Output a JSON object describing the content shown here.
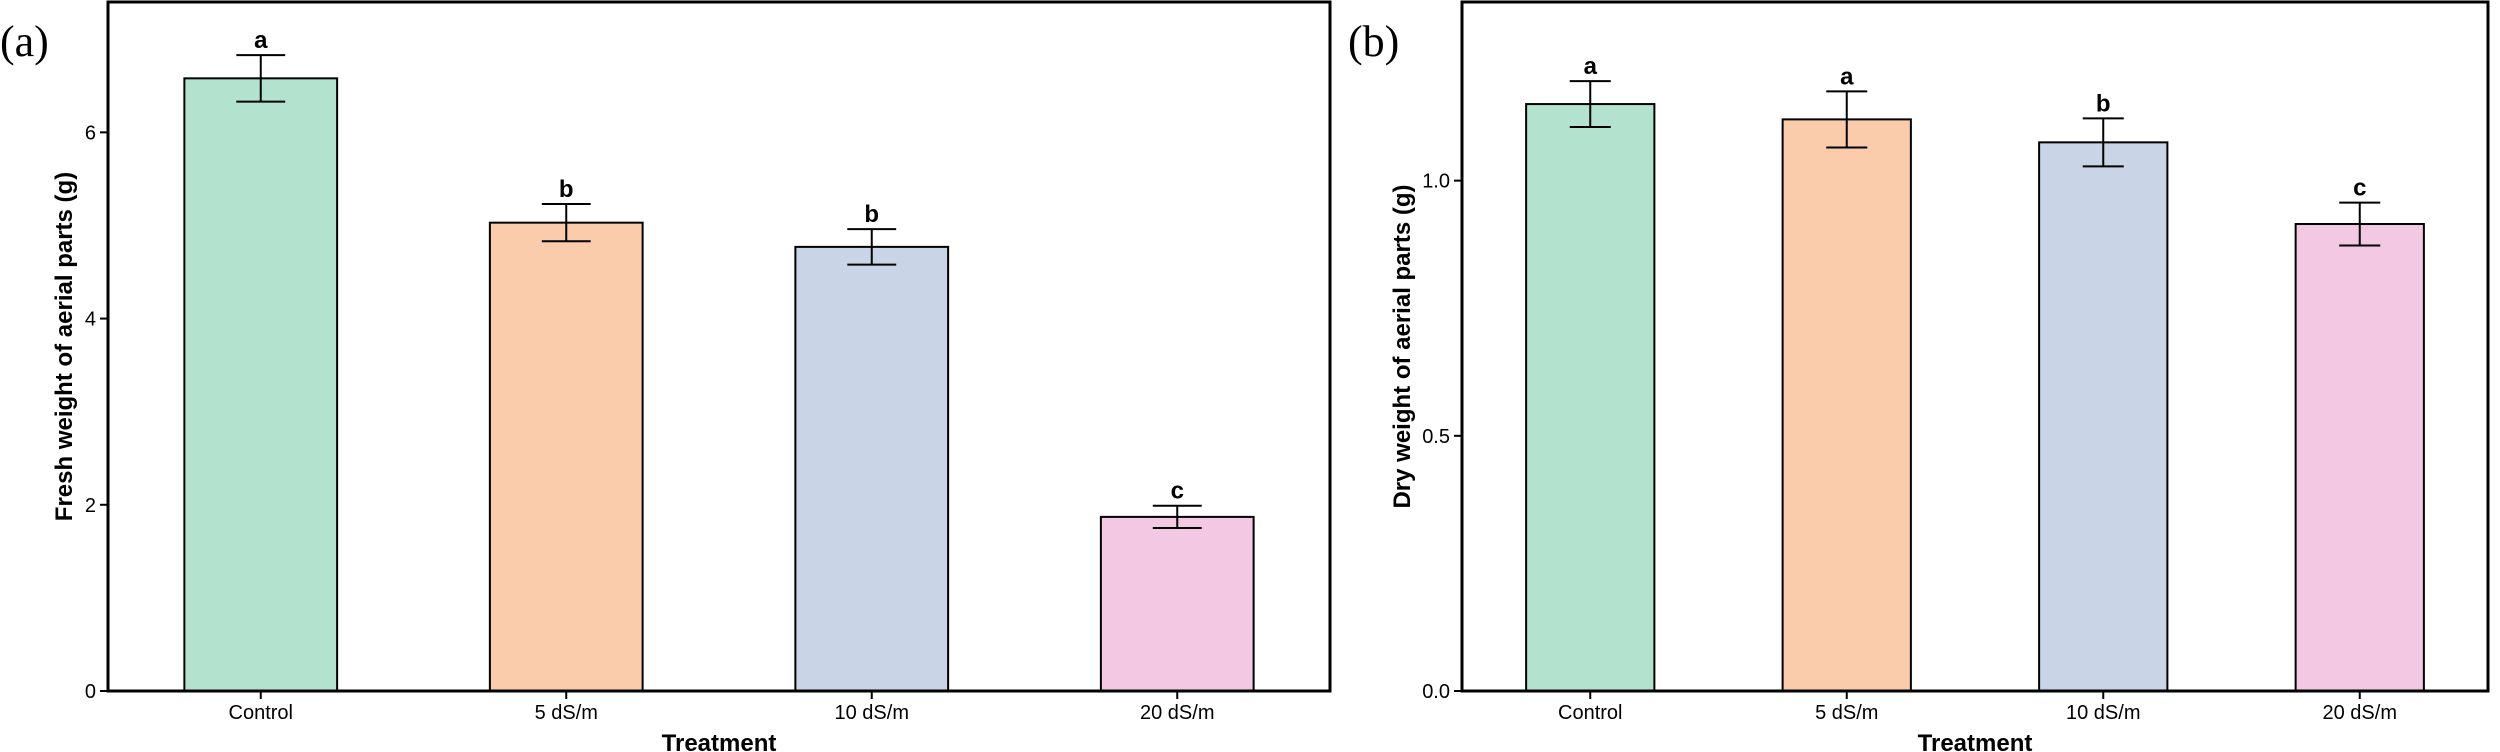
{
  "chart_data": [
    {
      "panel_label": "(a)",
      "type": "bar",
      "categories": [
        "Control",
        "5 dS/m",
        "10 dS/m",
        "20 dS/m"
      ],
      "values": [
        6.58,
        5.03,
        4.77,
        1.87
      ],
      "errors": [
        0.25,
        0.2,
        0.19,
        0.12
      ],
      "significance": [
        "a",
        "b",
        "b",
        "c"
      ],
      "colors": [
        "#b3e3cf",
        "#fbccab",
        "#c9d4e6",
        "#f3c8e3"
      ],
      "xlabel": "Treatment",
      "ylabel": "Fresh weight of aerial parts (g)",
      "ylim": [
        0,
        7.4
      ],
      "yticks": [
        0,
        2,
        4,
        6
      ],
      "ytick_labels": [
        "0",
        "2",
        "4",
        "6"
      ],
      "grid": false,
      "legend": "none"
    },
    {
      "panel_label": "(b)",
      "type": "bar",
      "categories": [
        "Control",
        "5 dS/m",
        "10 dS/m",
        "20 dS/m"
      ],
      "values": [
        1.15,
        1.12,
        1.075,
        0.915
      ],
      "errors": [
        0.045,
        0.055,
        0.047,
        0.042
      ],
      "significance": [
        "a",
        "a",
        "b",
        "c"
      ],
      "colors": [
        "#b3e3cf",
        "#fbccab",
        "#c9d4e6",
        "#f3c8e3"
      ],
      "xlabel": "Treatment",
      "ylabel": "Dry weight of aerial parts (g)",
      "ylim": [
        0,
        1.35
      ],
      "yticks": [
        0,
        0.5,
        1.0
      ],
      "ytick_labels": [
        "0.0",
        "0.5",
        "1.0"
      ],
      "grid": false,
      "legend": "none"
    }
  ]
}
